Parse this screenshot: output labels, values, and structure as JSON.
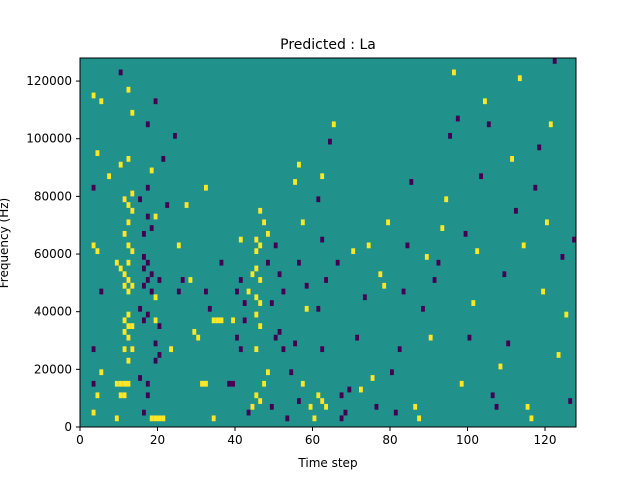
{
  "chart_data": {
    "type": "heatmap",
    "title": "Predicted : La",
    "xlabel": "Time step",
    "ylabel": "Frequency (Hz)",
    "xlim": [
      0,
      128
    ],
    "ylim": [
      0,
      128000
    ],
    "x_ticks": [
      0,
      20,
      40,
      60,
      80,
      100,
      120
    ],
    "x_tick_labels": [
      "0",
      "20",
      "40",
      "60",
      "80",
      "100",
      "120"
    ],
    "y_ticks": [
      0,
      20000,
      40000,
      60000,
      80000,
      100000,
      120000
    ],
    "y_tick_labels": [
      "0",
      "20000",
      "40000",
      "60000",
      "80000",
      "100000",
      "120000"
    ],
    "grid": false,
    "colormap": "viridis",
    "background_value": 0,
    "colors": {
      "background": "#21918c",
      "high": "#fde725",
      "low": "#440154"
    },
    "cell_height_hz": 2000,
    "value_legend": {
      "high": 1,
      "low": -1
    },
    "cells": [
      {
        "x": 3,
        "y": 4000,
        "value": 1
      },
      {
        "x": 4,
        "y": 10000,
        "value": 1
      },
      {
        "x": 3,
        "y": 14000,
        "value": -1
      },
      {
        "x": 5,
        "y": 18000,
        "value": 1
      },
      {
        "x": 3,
        "y": 26000,
        "value": -1
      },
      {
        "x": 5,
        "y": 46000,
        "value": -1
      },
      {
        "x": 3,
        "y": 62000,
        "value": 1
      },
      {
        "x": 4,
        "y": 60000,
        "value": 1
      },
      {
        "x": 3,
        "y": 82000,
        "value": -1
      },
      {
        "x": 4,
        "y": 94000,
        "value": 1
      },
      {
        "x": 3,
        "y": 114000,
        "value": 1
      },
      {
        "x": 5,
        "y": 112000,
        "value": 1
      },
      {
        "x": 9,
        "y": 2000,
        "value": 1
      },
      {
        "x": 9,
        "y": 14000,
        "value": 1
      },
      {
        "x": 10,
        "y": 14000,
        "value": 1
      },
      {
        "x": 11,
        "y": 14000,
        "value": 1
      },
      {
        "x": 12,
        "y": 14000,
        "value": 1
      },
      {
        "x": 10,
        "y": 10000,
        "value": 1
      },
      {
        "x": 11,
        "y": 10000,
        "value": 1
      },
      {
        "x": 11,
        "y": 26000,
        "value": 1
      },
      {
        "x": 12,
        "y": 22000,
        "value": 1
      },
      {
        "x": 12,
        "y": 30000,
        "value": 1
      },
      {
        "x": 13,
        "y": 26000,
        "value": 1
      },
      {
        "x": 11,
        "y": 32000,
        "value": 1
      },
      {
        "x": 12,
        "y": 34000,
        "value": 1
      },
      {
        "x": 13,
        "y": 34000,
        "value": 1
      },
      {
        "x": 11,
        "y": 36000,
        "value": 1
      },
      {
        "x": 12,
        "y": 38000,
        "value": 1
      },
      {
        "x": 9,
        "y": 56000,
        "value": 1
      },
      {
        "x": 10,
        "y": 54000,
        "value": 1
      },
      {
        "x": 11,
        "y": 52000,
        "value": 1
      },
      {
        "x": 12,
        "y": 50000,
        "value": 1
      },
      {
        "x": 11,
        "y": 48000,
        "value": 1
      },
      {
        "x": 12,
        "y": 46000,
        "value": 1
      },
      {
        "x": 13,
        "y": 48000,
        "value": 1
      },
      {
        "x": 12,
        "y": 56000,
        "value": 1
      },
      {
        "x": 13,
        "y": 60000,
        "value": 1
      },
      {
        "x": 12,
        "y": 62000,
        "value": 1
      },
      {
        "x": 11,
        "y": 66000,
        "value": 1
      },
      {
        "x": 12,
        "y": 70000,
        "value": 1
      },
      {
        "x": 13,
        "y": 74000,
        "value": 1
      },
      {
        "x": 12,
        "y": 76000,
        "value": 1
      },
      {
        "x": 11,
        "y": 78000,
        "value": 1
      },
      {
        "x": 13,
        "y": 80000,
        "value": 1
      },
      {
        "x": 10,
        "y": 90000,
        "value": 1
      },
      {
        "x": 12,
        "y": 92000,
        "value": 1
      },
      {
        "x": 7,
        "y": 86000,
        "value": 1
      },
      {
        "x": 13,
        "y": 108000,
        "value": 1
      },
      {
        "x": 12,
        "y": 116000,
        "value": 1
      },
      {
        "x": 10,
        "y": 122000,
        "value": -1
      },
      {
        "x": 15,
        "y": 16000,
        "value": -1
      },
      {
        "x": 16,
        "y": 4000,
        "value": -1
      },
      {
        "x": 17,
        "y": 10000,
        "value": -1
      },
      {
        "x": 17,
        "y": 14000,
        "value": -1
      },
      {
        "x": 18,
        "y": 2000,
        "value": 1
      },
      {
        "x": 19,
        "y": 2000,
        "value": 1
      },
      {
        "x": 20,
        "y": 2000,
        "value": 1
      },
      {
        "x": 21,
        "y": 2000,
        "value": 1
      },
      {
        "x": 19,
        "y": 22000,
        "value": -1
      },
      {
        "x": 20,
        "y": 24000,
        "value": -1
      },
      {
        "x": 19,
        "y": 28000,
        "value": -1
      },
      {
        "x": 20,
        "y": 34000,
        "value": -1
      },
      {
        "x": 16,
        "y": 36000,
        "value": -1
      },
      {
        "x": 17,
        "y": 38000,
        "value": -1
      },
      {
        "x": 19,
        "y": 36000,
        "value": 1
      },
      {
        "x": 15,
        "y": 40000,
        "value": -1
      },
      {
        "x": 16,
        "y": 48000,
        "value": -1
      },
      {
        "x": 17,
        "y": 50000,
        "value": -1
      },
      {
        "x": 18,
        "y": 52000,
        "value": -1
      },
      {
        "x": 16,
        "y": 54000,
        "value": -1
      },
      {
        "x": 17,
        "y": 56000,
        "value": -1
      },
      {
        "x": 16,
        "y": 58000,
        "value": -1
      },
      {
        "x": 18,
        "y": 46000,
        "value": -1
      },
      {
        "x": 19,
        "y": 44000,
        "value": 1
      },
      {
        "x": 20,
        "y": 50000,
        "value": -1
      },
      {
        "x": 16,
        "y": 66000,
        "value": -1
      },
      {
        "x": 18,
        "y": 68000,
        "value": -1
      },
      {
        "x": 17,
        "y": 72000,
        "value": -1
      },
      {
        "x": 19,
        "y": 72000,
        "value": 1
      },
      {
        "x": 15,
        "y": 78000,
        "value": -1
      },
      {
        "x": 17,
        "y": 82000,
        "value": -1
      },
      {
        "x": 21,
        "y": 92000,
        "value": -1
      },
      {
        "x": 18,
        "y": 88000,
        "value": 1
      },
      {
        "x": 17,
        "y": 104000,
        "value": -1
      },
      {
        "x": 19,
        "y": 112000,
        "value": -1
      },
      {
        "x": 22,
        "y": 76000,
        "value": -1
      },
      {
        "x": 23,
        "y": 26000,
        "value": 1
      },
      {
        "x": 24,
        "y": 100000,
        "value": -1
      },
      {
        "x": 25,
        "y": 62000,
        "value": 1
      },
      {
        "x": 26,
        "y": 50000,
        "value": -1
      },
      {
        "x": 25,
        "y": 46000,
        "value": -1
      },
      {
        "x": 27,
        "y": 76000,
        "value": 1
      },
      {
        "x": 28,
        "y": 50000,
        "value": 1
      },
      {
        "x": 29,
        "y": 32000,
        "value": 1
      },
      {
        "x": 30,
        "y": 30000,
        "value": 1
      },
      {
        "x": 31,
        "y": 14000,
        "value": 1
      },
      {
        "x": 32,
        "y": 14000,
        "value": 1
      },
      {
        "x": 32,
        "y": 46000,
        "value": -1
      },
      {
        "x": 33,
        "y": 40000,
        "value": -1
      },
      {
        "x": 32,
        "y": 82000,
        "value": 1
      },
      {
        "x": 34,
        "y": 2000,
        "value": 1
      },
      {
        "x": 34,
        "y": 36000,
        "value": 1
      },
      {
        "x": 35,
        "y": 36000,
        "value": 1
      },
      {
        "x": 36,
        "y": 56000,
        "value": -1
      },
      {
        "x": 36,
        "y": 36000,
        "value": 1
      },
      {
        "x": 38,
        "y": 14000,
        "value": -1
      },
      {
        "x": 39,
        "y": 14000,
        "value": -1
      },
      {
        "x": 39,
        "y": 36000,
        "value": 1
      },
      {
        "x": 40,
        "y": 30000,
        "value": -1
      },
      {
        "x": 41,
        "y": 26000,
        "value": -1
      },
      {
        "x": 40,
        "y": 46000,
        "value": -1
      },
      {
        "x": 41,
        "y": 50000,
        "value": -1
      },
      {
        "x": 42,
        "y": 42000,
        "value": -1
      },
      {
        "x": 41,
        "y": 64000,
        "value": 1
      },
      {
        "x": 42,
        "y": 36000,
        "value": -1
      },
      {
        "x": 43,
        "y": 46000,
        "value": 1
      },
      {
        "x": 44,
        "y": 52000,
        "value": 1
      },
      {
        "x": 45,
        "y": 54000,
        "value": 1
      },
      {
        "x": 46,
        "y": 50000,
        "value": 1
      },
      {
        "x": 45,
        "y": 44000,
        "value": 1
      },
      {
        "x": 46,
        "y": 42000,
        "value": 1
      },
      {
        "x": 45,
        "y": 60000,
        "value": 1
      },
      {
        "x": 46,
        "y": 62000,
        "value": 1
      },
      {
        "x": 45,
        "y": 64000,
        "value": 1
      },
      {
        "x": 46,
        "y": 74000,
        "value": 1
      },
      {
        "x": 45,
        "y": 26000,
        "value": 1
      },
      {
        "x": 46,
        "y": 34000,
        "value": 1
      },
      {
        "x": 45,
        "y": 38000,
        "value": 1
      },
      {
        "x": 44,
        "y": 6000,
        "value": 1
      },
      {
        "x": 45,
        "y": 10000,
        "value": 1
      },
      {
        "x": 46,
        "y": 8000,
        "value": 1
      },
      {
        "x": 43,
        "y": 4000,
        "value": -1
      },
      {
        "x": 47,
        "y": 14000,
        "value": 1
      },
      {
        "x": 48,
        "y": 18000,
        "value": 1
      },
      {
        "x": 48,
        "y": 66000,
        "value": 1
      },
      {
        "x": 47,
        "y": 70000,
        "value": 1
      },
      {
        "x": 48,
        "y": 56000,
        "value": -1
      },
      {
        "x": 49,
        "y": 42000,
        "value": -1
      },
      {
        "x": 49,
        "y": 6000,
        "value": -1
      },
      {
        "x": 50,
        "y": 30000,
        "value": -1
      },
      {
        "x": 51,
        "y": 32000,
        "value": -1
      },
      {
        "x": 50,
        "y": 62000,
        "value": -1
      },
      {
        "x": 51,
        "y": 52000,
        "value": -1
      },
      {
        "x": 52,
        "y": 46000,
        "value": -1
      },
      {
        "x": 52,
        "y": 26000,
        "value": -1
      },
      {
        "x": 53,
        "y": 2000,
        "value": -1
      },
      {
        "x": 54,
        "y": 18000,
        "value": -1
      },
      {
        "x": 55,
        "y": 28000,
        "value": -1
      },
      {
        "x": 56,
        "y": 8000,
        "value": -1
      },
      {
        "x": 56,
        "y": 56000,
        "value": -1
      },
      {
        "x": 55,
        "y": 84000,
        "value": 1
      },
      {
        "x": 56,
        "y": 90000,
        "value": 1
      },
      {
        "x": 57,
        "y": 70000,
        "value": 1
      },
      {
        "x": 58,
        "y": 40000,
        "value": 1
      },
      {
        "x": 58,
        "y": 48000,
        "value": -1
      },
      {
        "x": 57,
        "y": 14000,
        "value": 1
      },
      {
        "x": 59,
        "y": 6000,
        "value": 1
      },
      {
        "x": 60,
        "y": 2000,
        "value": 1
      },
      {
        "x": 61,
        "y": 10000,
        "value": 1
      },
      {
        "x": 62,
        "y": 8000,
        "value": 1
      },
      {
        "x": 63,
        "y": 6000,
        "value": 1
      },
      {
        "x": 62,
        "y": 26000,
        "value": -1
      },
      {
        "x": 61,
        "y": 40000,
        "value": -1
      },
      {
        "x": 63,
        "y": 50000,
        "value": -1
      },
      {
        "x": 62,
        "y": 64000,
        "value": -1
      },
      {
        "x": 61,
        "y": 78000,
        "value": -1
      },
      {
        "x": 62,
        "y": 86000,
        "value": 1
      },
      {
        "x": 64,
        "y": 98000,
        "value": -1
      },
      {
        "x": 65,
        "y": 104000,
        "value": 1
      },
      {
        "x": 66,
        "y": 56000,
        "value": -1
      },
      {
        "x": 67,
        "y": 10000,
        "value": -1
      },
      {
        "x": 67,
        "y": 2000,
        "value": -1
      },
      {
        "x": 68,
        "y": 4000,
        "value": -1
      },
      {
        "x": 69,
        "y": 12000,
        "value": -1
      },
      {
        "x": 70,
        "y": 60000,
        "value": 1
      },
      {
        "x": 71,
        "y": 30000,
        "value": -1
      },
      {
        "x": 72,
        "y": 12000,
        "value": 1
      },
      {
        "x": 73,
        "y": 44000,
        "value": -1
      },
      {
        "x": 74,
        "y": 62000,
        "value": 1
      },
      {
        "x": 75,
        "y": 16000,
        "value": 1
      },
      {
        "x": 76,
        "y": 6000,
        "value": -1
      },
      {
        "x": 77,
        "y": 52000,
        "value": 1
      },
      {
        "x": 78,
        "y": 48000,
        "value": 1
      },
      {
        "x": 79,
        "y": 70000,
        "value": 1
      },
      {
        "x": 80,
        "y": 18000,
        "value": -1
      },
      {
        "x": 81,
        "y": 4000,
        "value": -1
      },
      {
        "x": 82,
        "y": 26000,
        "value": -1
      },
      {
        "x": 83,
        "y": 46000,
        "value": -1
      },
      {
        "x": 84,
        "y": 62000,
        "value": -1
      },
      {
        "x": 85,
        "y": 84000,
        "value": -1
      },
      {
        "x": 86,
        "y": 6000,
        "value": 1
      },
      {
        "x": 87,
        "y": 2000,
        "value": 1
      },
      {
        "x": 88,
        "y": 40000,
        "value": -1
      },
      {
        "x": 89,
        "y": 58000,
        "value": 1
      },
      {
        "x": 90,
        "y": 30000,
        "value": 1
      },
      {
        "x": 91,
        "y": 50000,
        "value": -1
      },
      {
        "x": 92,
        "y": 56000,
        "value": -1
      },
      {
        "x": 93,
        "y": 68000,
        "value": 1
      },
      {
        "x": 94,
        "y": 78000,
        "value": 1
      },
      {
        "x": 95,
        "y": 100000,
        "value": -1
      },
      {
        "x": 96,
        "y": 122000,
        "value": 1
      },
      {
        "x": 97,
        "y": 106000,
        "value": -1
      },
      {
        "x": 98,
        "y": 14000,
        "value": 1
      },
      {
        "x": 99,
        "y": 66000,
        "value": -1
      },
      {
        "x": 100,
        "y": 30000,
        "value": -1
      },
      {
        "x": 101,
        "y": 42000,
        "value": 1
      },
      {
        "x": 102,
        "y": 60000,
        "value": 1
      },
      {
        "x": 103,
        "y": 86000,
        "value": -1
      },
      {
        "x": 104,
        "y": 112000,
        "value": 1
      },
      {
        "x": 105,
        "y": 104000,
        "value": -1
      },
      {
        "x": 106,
        "y": 10000,
        "value": -1
      },
      {
        "x": 107,
        "y": 6000,
        "value": -1
      },
      {
        "x": 108,
        "y": 20000,
        "value": 1
      },
      {
        "x": 109,
        "y": 52000,
        "value": -1
      },
      {
        "x": 110,
        "y": 28000,
        "value": -1
      },
      {
        "x": 111,
        "y": 92000,
        "value": 1
      },
      {
        "x": 112,
        "y": 74000,
        "value": -1
      },
      {
        "x": 113,
        "y": 120000,
        "value": 1
      },
      {
        "x": 114,
        "y": 62000,
        "value": 1
      },
      {
        "x": 115,
        "y": 6000,
        "value": 1
      },
      {
        "x": 116,
        "y": 2000,
        "value": 1
      },
      {
        "x": 117,
        "y": 82000,
        "value": -1
      },
      {
        "x": 118,
        "y": 96000,
        "value": -1
      },
      {
        "x": 119,
        "y": 46000,
        "value": 1
      },
      {
        "x": 120,
        "y": 70000,
        "value": 1
      },
      {
        "x": 121,
        "y": 104000,
        "value": 1
      },
      {
        "x": 122,
        "y": 126000,
        "value": -1
      },
      {
        "x": 123,
        "y": 24000,
        "value": 1
      },
      {
        "x": 124,
        "y": 58000,
        "value": -1
      },
      {
        "x": 125,
        "y": 38000,
        "value": 1
      },
      {
        "x": 126,
        "y": 8000,
        "value": -1
      },
      {
        "x": 127,
        "y": 64000,
        "value": -1
      }
    ]
  }
}
